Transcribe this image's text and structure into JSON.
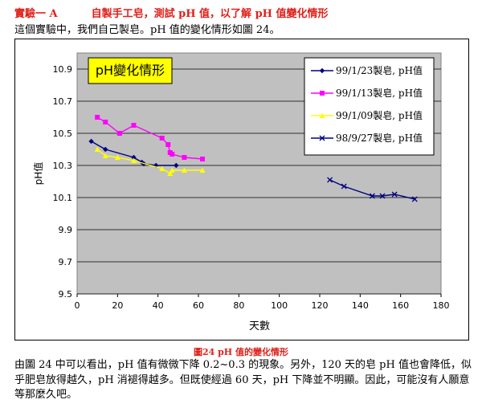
{
  "heading": {
    "label": "實驗一 A",
    "title": "自製手工皂，測試 pH 值，以了解 pH 值變化情形"
  },
  "intro": "這個實驗中，我們自己製皂。pH 值的變化情形如圖 24。",
  "chart_data": {
    "type": "line",
    "title": "pH變化情形",
    "xlabel": "天數",
    "ylabel": "pH值",
    "xlim": [
      0,
      180
    ],
    "ylim": [
      9.5,
      11.0
    ],
    "xticks": [
      0,
      20,
      40,
      60,
      80,
      100,
      120,
      140,
      160,
      180
    ],
    "yticks": [
      9.5,
      9.7,
      9.9,
      10.1,
      10.3,
      10.5,
      10.7,
      10.9
    ],
    "grid": true,
    "legend": "top-right",
    "series": [
      {
        "name": "99/1/23製皂, pH值",
        "color": "#000080",
        "marker": "diamond",
        "x": [
          7,
          14,
          28,
          32,
          33,
          39,
          49
        ],
        "y": [
          10.45,
          10.4,
          10.35,
          10.32,
          10.31,
          10.3,
          10.3
        ]
      },
      {
        "name": "99/1/13製皂, pH值",
        "color": "#ff00ff",
        "marker": "square",
        "x": [
          10,
          14,
          21,
          28,
          42,
          45,
          46,
          47,
          53,
          62
        ],
        "y": [
          10.6,
          10.57,
          10.5,
          10.55,
          10.47,
          10.43,
          10.38,
          10.37,
          10.35,
          10.34
        ]
      },
      {
        "name": "99/1/09製皂, pH值",
        "color": "#ffff00",
        "marker": "triangle",
        "x": [
          10,
          14,
          20,
          28,
          42,
          46,
          47,
          53,
          62
        ],
        "y": [
          10.4,
          10.36,
          10.35,
          10.33,
          10.28,
          10.25,
          10.27,
          10.27,
          10.27
        ]
      },
      {
        "name": "98/9/27製皂, pH值",
        "color": "#000080",
        "marker": "x",
        "x": [
          125,
          132,
          146,
          151,
          157,
          167
        ],
        "y": [
          10.21,
          10.17,
          10.11,
          10.11,
          10.12,
          10.09
        ]
      }
    ]
  },
  "caption": "圖24 pH 值的變化情形",
  "body_text": "由圖 24 中可以看出，pH 值有微微下降 0.2~0.3 的現象。另外，120 天的皂 pH 值也會降低，似乎肥皂放得越久，pH 消褪得越多。但既使經過 60 天，pH 下降並不明顯。因此，可能沒有人願意等那麼久吧。"
}
